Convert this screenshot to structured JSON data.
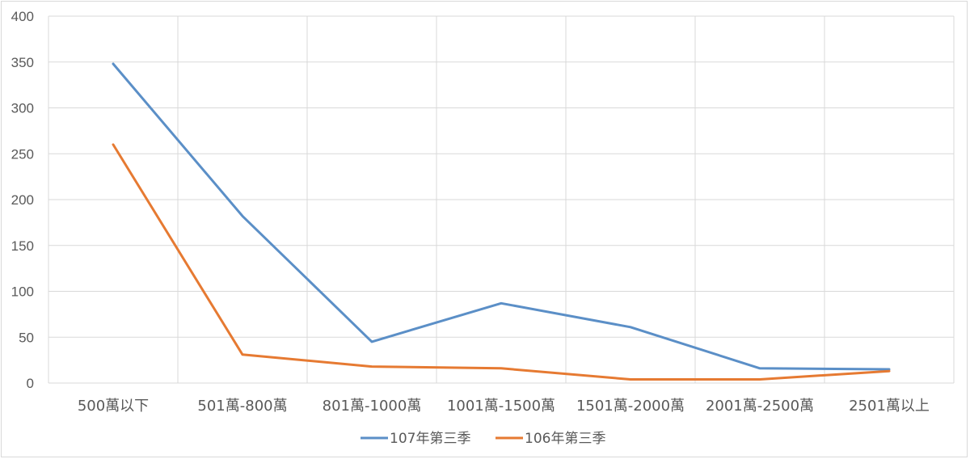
{
  "chart_data": {
    "type": "line",
    "title": "",
    "xlabel": "",
    "ylabel": "",
    "categories": [
      "500萬以下",
      "501萬-800萬",
      "801萬-1000萬",
      "1001萬-1500萬",
      "1501萬-2000萬",
      "2001萬-2500萬",
      "2501萬以上"
    ],
    "series": [
      {
        "name": "107年第三季",
        "color": "#5b8fc7",
        "values": [
          348,
          182,
          45,
          87,
          61,
          16,
          15
        ]
      },
      {
        "name": "106年第三季",
        "color": "#e67a32",
        "values": [
          260,
          31,
          18,
          16,
          4,
          4,
          13
        ]
      }
    ],
    "ylim": [
      0,
      400
    ],
    "yticks": [
      0,
      50,
      100,
      150,
      200,
      250,
      300,
      350,
      400
    ],
    "grid": true,
    "legend": "bottom"
  }
}
